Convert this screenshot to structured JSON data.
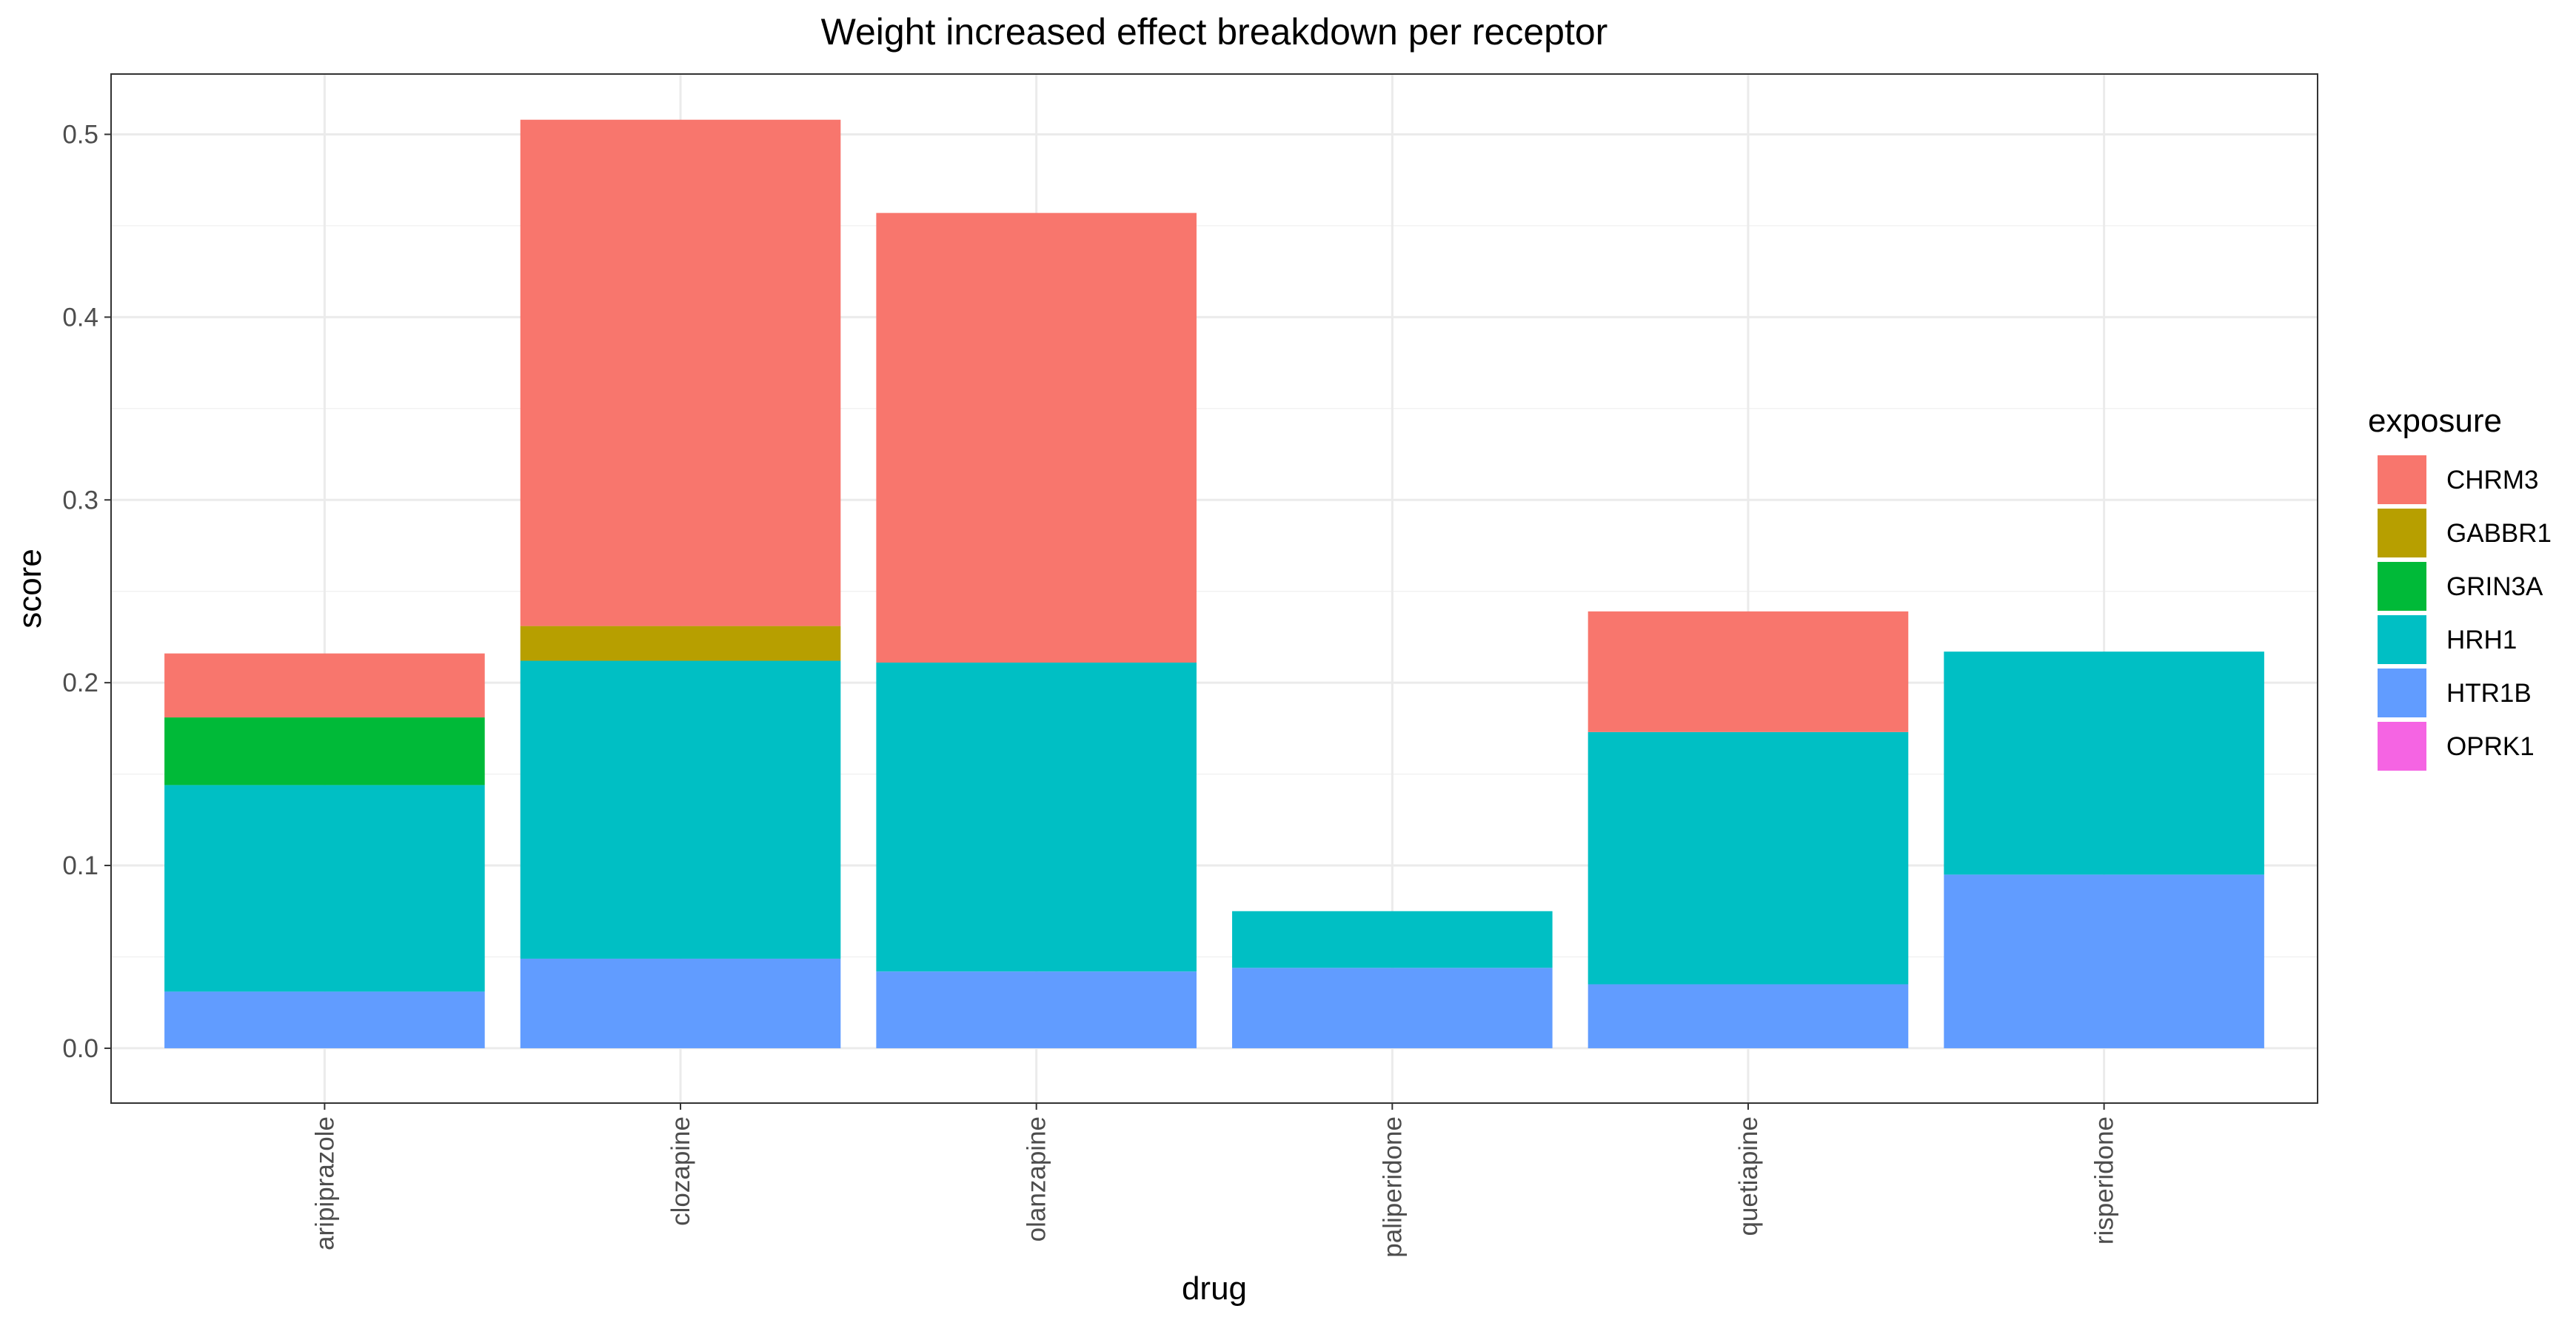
{
  "chart_data": {
    "type": "bar",
    "stacked": true,
    "title": "Weight increased effect breakdown per receptor",
    "xlabel": "drug",
    "ylabel": "score",
    "ylim": [
      -0.03,
      0.533
    ],
    "yticks": [
      "0.0",
      "0.1",
      "0.2",
      "0.3",
      "0.4",
      "0.5"
    ],
    "categories": [
      "aripiprazole",
      "clozapine",
      "olanzapine",
      "paliperidone",
      "quetiapine",
      "risperidone"
    ],
    "series": [
      {
        "name": "CHRM3",
        "color": "#F8766D",
        "values": [
          0.035,
          0.277,
          0.246,
          0.0,
          0.066,
          0.0
        ]
      },
      {
        "name": "GABBR1",
        "color": "#B79F00",
        "values": [
          0.0,
          0.019,
          0.0,
          0.0,
          0.0,
          0.0
        ]
      },
      {
        "name": "GRIN3A",
        "color": "#00BA38",
        "values": [
          0.037,
          0.0,
          0.0,
          0.0,
          0.0,
          0.0
        ]
      },
      {
        "name": "HRH1",
        "color": "#00BFC4",
        "values": [
          0.113,
          0.163,
          0.169,
          0.031,
          0.138,
          0.122
        ]
      },
      {
        "name": "HTR1B",
        "color": "#619CFF",
        "values": [
          0.031,
          0.049,
          0.042,
          0.044,
          0.035,
          0.095
        ]
      },
      {
        "name": "OPRK1",
        "color": "#F564E3",
        "values": [
          0.0,
          0.0,
          0.0,
          0.0,
          0.0,
          0.0
        ]
      }
    ],
    "stack_order_bottom_to_top": [
      "HTR1B",
      "OPRK1",
      "HRH1",
      "GRIN3A",
      "GABBR1",
      "CHRM3"
    ],
    "legend": {
      "title": "exposure",
      "position": "right"
    },
    "grid": true,
    "theme": "bw"
  }
}
